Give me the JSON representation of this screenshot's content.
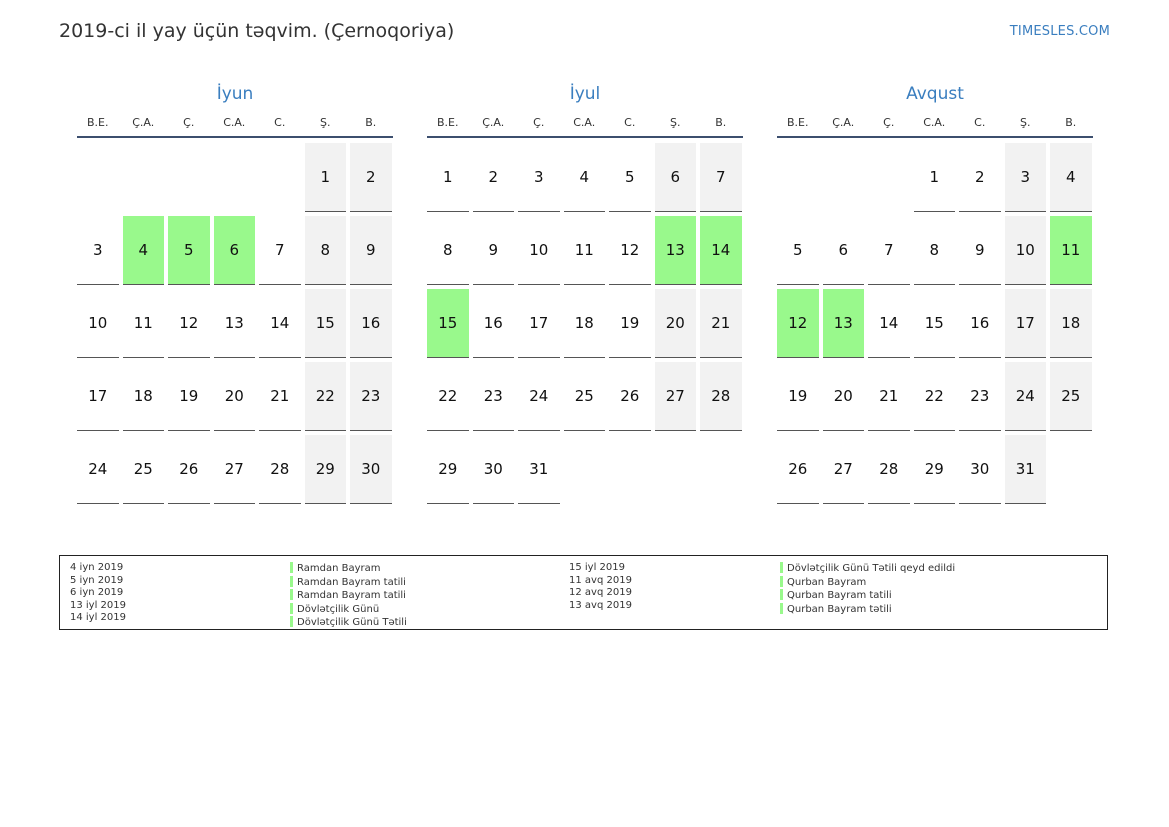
{
  "title": "2019-ci il yay üçün təqvim. (Çernoqoriya)",
  "brand": "TIMESLES.COM",
  "colors": {
    "holiday": "#99f98c",
    "weekend": "#f2f2f2",
    "accent": "#3a7ebf"
  },
  "weekdays": [
    "B.E.",
    "Ç.A.",
    "Ç.",
    "C.A.",
    "C.",
    "Ş.",
    "B."
  ],
  "months": [
    {
      "name": "İyun",
      "days": [
        [
          null,
          null,
          null,
          null,
          null,
          "1",
          "2"
        ],
        [
          "3",
          "4",
          "5",
          "6",
          "7",
          "8",
          "9"
        ],
        [
          "10",
          "11",
          "12",
          "13",
          "14",
          "15",
          "16"
        ],
        [
          "17",
          "18",
          "19",
          "20",
          "21",
          "22",
          "23"
        ],
        [
          "24",
          "25",
          "26",
          "27",
          "28",
          "29",
          "30"
        ]
      ],
      "holidays": [
        "4",
        "5",
        "6"
      ]
    },
    {
      "name": "İyul",
      "days": [
        [
          "1",
          "2",
          "3",
          "4",
          "5",
          "6",
          "7"
        ],
        [
          "8",
          "9",
          "10",
          "11",
          "12",
          "13",
          "14"
        ],
        [
          "15",
          "16",
          "17",
          "18",
          "19",
          "20",
          "21"
        ],
        [
          "22",
          "23",
          "24",
          "25",
          "26",
          "27",
          "28"
        ],
        [
          "29",
          "30",
          "31",
          null,
          null,
          null,
          null
        ]
      ],
      "holidays": [
        "13",
        "14",
        "15"
      ]
    },
    {
      "name": "Avqust",
      "days": [
        [
          null,
          null,
          null,
          "1",
          "2",
          "3",
          "4"
        ],
        [
          "5",
          "6",
          "7",
          "8",
          "9",
          "10",
          "11"
        ],
        [
          "12",
          "13",
          "14",
          "15",
          "16",
          "17",
          "18"
        ],
        [
          "19",
          "20",
          "21",
          "22",
          "23",
          "24",
          "25"
        ],
        [
          "26",
          "27",
          "28",
          "29",
          "30",
          "31",
          null
        ]
      ],
      "holidays": [
        "11",
        "12",
        "13"
      ]
    }
  ],
  "legend": {
    "left_dates": [
      "4 iyn 2019",
      "5 iyn 2019",
      "6 iyn 2019",
      "13 iyl 2019",
      "14 iyl 2019"
    ],
    "left_names": [
      "Ramdan Bayram",
      "Ramdan Bayram tatili",
      "Ramdan Bayram tatili",
      "Dövlətçilik Günü",
      "Dövlətçilik Günü Tətili"
    ],
    "right_dates": [
      "15 iyl 2019",
      "11 avq 2019",
      "12 avq 2019",
      "13 avq 2019"
    ],
    "right_names": [
      "Dövlətçilik Günü Tətili qeyd edildi",
      "Qurban Bayram",
      "Qurban Bayram tatili",
      "Qurban Bayram tətili"
    ]
  }
}
